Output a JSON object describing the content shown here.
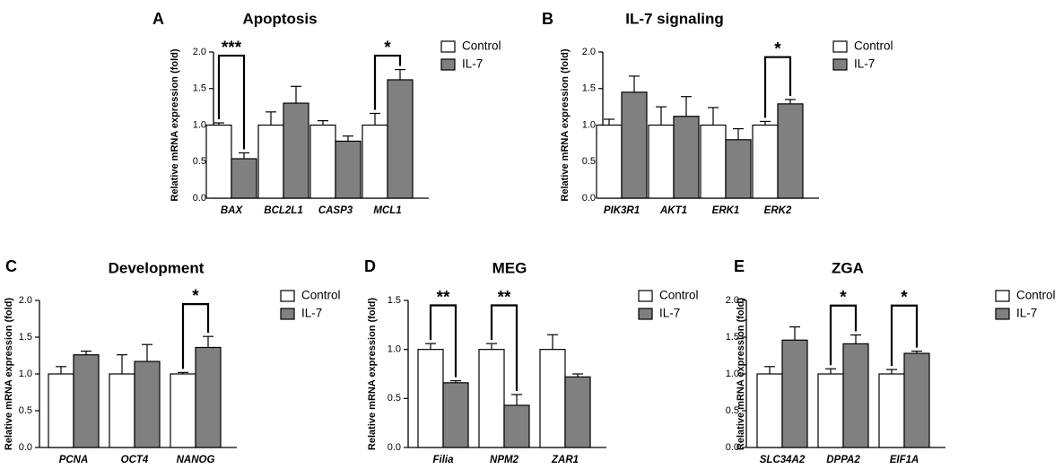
{
  "colors": {
    "control": "#ffffff",
    "il7": "#808080",
    "stroke": "#000000"
  },
  "chart_data": [
    {
      "type": "bar",
      "letter": "A",
      "title": "Apoptosis",
      "ylabel": "Relative mRNA expression (fold)",
      "ylim": [
        0,
        2.0
      ],
      "yticks": [
        "0.0",
        "0.5",
        "1.0",
        "1.5",
        "2.0"
      ],
      "categories": [
        "BAX",
        "BCL2L1",
        "CASP3",
        "MCL1"
      ],
      "legend": [
        "Control",
        "IL-7"
      ],
      "series": [
        {
          "name": "Control",
          "values": [
            1.0,
            1.0,
            1.0,
            1.0
          ],
          "errors": [
            0.03,
            0.18,
            0.06,
            0.16
          ]
        },
        {
          "name": "IL-7",
          "values": [
            0.54,
            1.3,
            0.78,
            1.62
          ],
          "errors": [
            0.08,
            0.23,
            0.07,
            0.14
          ]
        }
      ],
      "significance": [
        {
          "category": 0,
          "label": "***",
          "bracket_y": 1.95
        },
        {
          "category": 3,
          "label": "*",
          "bracket_y": 1.95
        }
      ]
    },
    {
      "type": "bar",
      "letter": "B",
      "title": "IL-7 signaling",
      "ylabel": "Relative mRNA expression (fold)",
      "ylim": [
        0,
        2.0
      ],
      "yticks": [
        "0.0",
        "0.5",
        "1.0",
        "1.5",
        "2.0"
      ],
      "categories": [
        "PIK3R1",
        "AKT1",
        "ERK1",
        "ERK2"
      ],
      "legend": [
        "Control",
        "IL-7"
      ],
      "series": [
        {
          "name": "Control",
          "values": [
            1.0,
            1.0,
            1.0,
            1.0
          ],
          "errors": [
            0.08,
            0.25,
            0.24,
            0.05
          ]
        },
        {
          "name": "IL-7",
          "values": [
            1.45,
            1.12,
            0.8,
            1.29
          ],
          "errors": [
            0.22,
            0.27,
            0.15,
            0.06
          ]
        }
      ],
      "significance": [
        {
          "category": 3,
          "label": "*",
          "bracket_y": 1.93
        }
      ]
    },
    {
      "type": "bar",
      "letter": "C",
      "title": "Development",
      "ylabel": "Relative mRNA expression (fold)",
      "ylim": [
        0,
        2.0
      ],
      "yticks": [
        "0.0",
        "0.5",
        "1.0",
        "1.5",
        "2.0"
      ],
      "categories": [
        "PCNA",
        "OCT4",
        "NANOG"
      ],
      "legend": [
        "Control",
        "IL-7"
      ],
      "series": [
        {
          "name": "Control",
          "values": [
            1.0,
            1.0,
            1.0
          ],
          "errors": [
            0.1,
            0.26,
            0.02
          ]
        },
        {
          "name": "IL-7",
          "values": [
            1.26,
            1.17,
            1.36
          ],
          "errors": [
            0.05,
            0.23,
            0.15
          ]
        }
      ],
      "significance": [
        {
          "category": 2,
          "label": "*",
          "bracket_y": 1.95
        }
      ]
    },
    {
      "type": "bar",
      "letter": "D",
      "title": "MEG",
      "ylabel": "Relative mRNA expression (fold)",
      "ylim": [
        0,
        1.5
      ],
      "yticks": [
        "0.0",
        "0.5",
        "1.0",
        "1.5"
      ],
      "categories": [
        "Filia",
        "NPM2",
        "ZAR1"
      ],
      "legend": [
        "Control",
        "IL-7"
      ],
      "series": [
        {
          "name": "Control",
          "values": [
            1.0,
            1.0,
            1.0
          ],
          "errors": [
            0.06,
            0.06,
            0.15
          ]
        },
        {
          "name": "IL-7",
          "values": [
            0.66,
            0.43,
            0.72
          ],
          "errors": [
            0.02,
            0.11,
            0.03
          ]
        }
      ],
      "significance": [
        {
          "category": 0,
          "label": "**",
          "bracket_y": 1.45
        },
        {
          "category": 1,
          "label": "**",
          "bracket_y": 1.45
        }
      ]
    },
    {
      "type": "bar",
      "letter": "E",
      "title": "ZGA",
      "ylabel": "Relative mRNA expression (fold)",
      "ylim": [
        0,
        2.0
      ],
      "yticks": [
        "0.0",
        "0.5",
        "1.0",
        "1.5",
        "2.0"
      ],
      "categories": [
        "SLC34A2",
        "DPPA2",
        "EIF1A"
      ],
      "legend": [
        "Control",
        "IL-7"
      ],
      "series": [
        {
          "name": "Control",
          "values": [
            1.0,
            1.0,
            1.0
          ],
          "errors": [
            0.1,
            0.07,
            0.06
          ]
        },
        {
          "name": "IL-7",
          "values": [
            1.46,
            1.41,
            1.28
          ],
          "errors": [
            0.18,
            0.12,
            0.03
          ]
        }
      ],
      "significance": [
        {
          "category": 1,
          "label": "*",
          "bracket_y": 1.93
        },
        {
          "category": 2,
          "label": "*",
          "bracket_y": 1.93
        }
      ]
    }
  ]
}
